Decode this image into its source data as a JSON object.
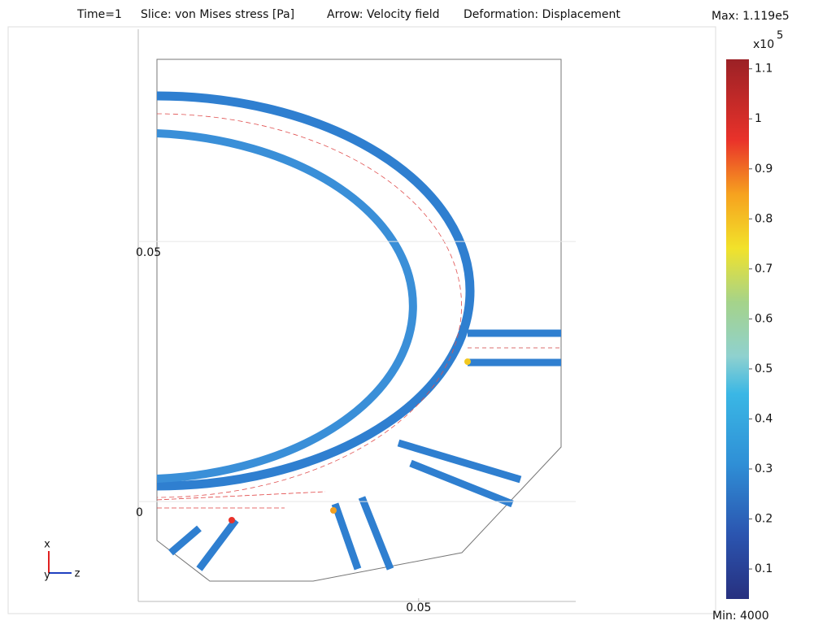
{
  "chart_data": {
    "type": "slice",
    "title_parts": [
      "Time=1",
      "Slice: von Mises stress [Pa]",
      "Arrow: Velocity field",
      "Deformation: Displacement"
    ],
    "xlim": [
      -0.0039,
      0.0802
    ],
    "xticks": [
      0.05
    ],
    "ylim": [
      -0.0192,
      0.0908
    ],
    "yticks": [
      0,
      0.05
    ],
    "grid": true,
    "colorbar": {
      "max_label": "Max: 1.119e5",
      "min_label": "Min: 4000",
      "multiplier": "x10",
      "exponent": "5",
      "lim": [
        0.04,
        1.119
      ],
      "ticks": [
        0.1,
        0.2,
        0.3,
        0.4,
        0.5,
        0.6,
        0.7,
        0.8,
        0.9,
        1,
        1.1
      ]
    },
    "triad": [
      "x",
      "y",
      "z"
    ]
  }
}
